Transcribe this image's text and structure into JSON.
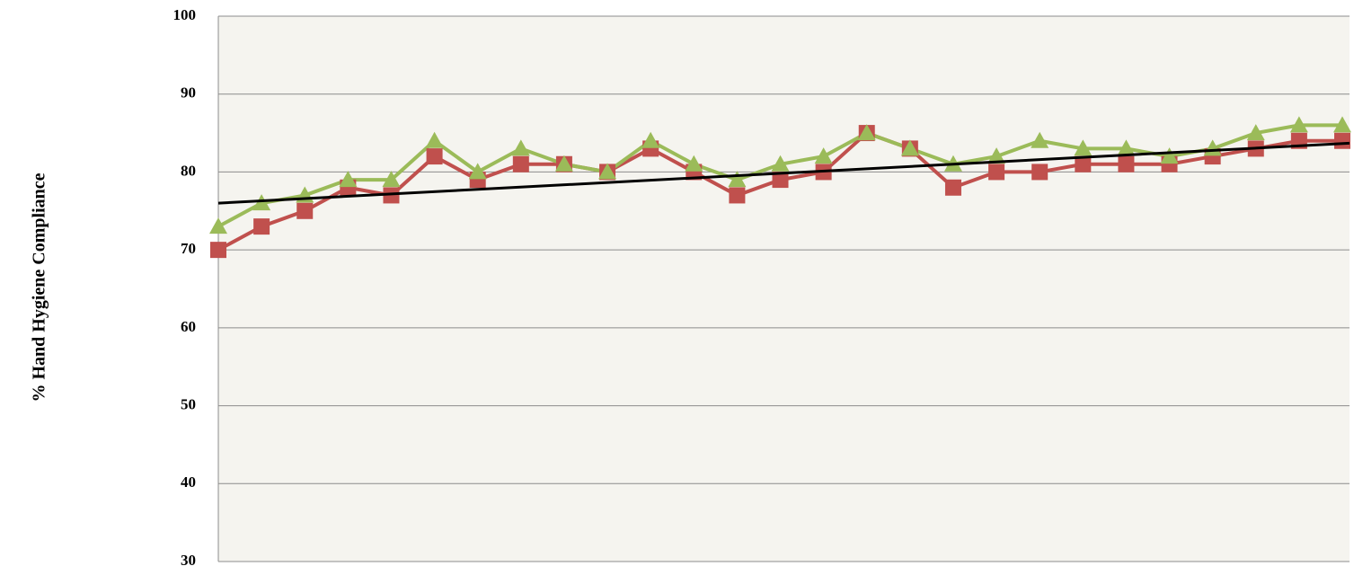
{
  "chart_data": {
    "type": "line",
    "ylabel": "% Hand Hygiene Compliance",
    "categories": [
      null,
      null,
      null,
      null,
      null,
      null,
      null,
      null,
      null,
      null,
      null,
      null,
      null,
      null,
      null,
      null,
      null,
      null,
      null,
      null,
      null,
      null,
      null,
      null,
      null,
      null,
      null
    ],
    "series": [
      {
        "color": "#c0504d",
        "marker": "square",
        "values": [
          70,
          73,
          75,
          78,
          77,
          82,
          79,
          81,
          81,
          80,
          83,
          80,
          77,
          79,
          80,
          85,
          83,
          78,
          80,
          80,
          81,
          81,
          81,
          82,
          83,
          84,
          84
        ]
      },
      {
        "color": "#9bbb59",
        "marker": "triangle",
        "values": [
          73,
          76,
          77,
          79,
          79,
          84,
          80,
          83,
          81,
          80,
          84,
          81,
          79,
          81,
          82,
          85,
          83,
          81,
          82,
          84,
          83,
          83,
          82,
          83,
          85,
          86,
          86
        ]
      }
    ],
    "trendline": {
      "color": "#000000",
      "start": 76,
      "end": 83.7
    },
    "ylim": [
      30,
      100
    ],
    "yticks": [
      30,
      40,
      50,
      60,
      70,
      80,
      90,
      100
    ],
    "grid": true
  }
}
